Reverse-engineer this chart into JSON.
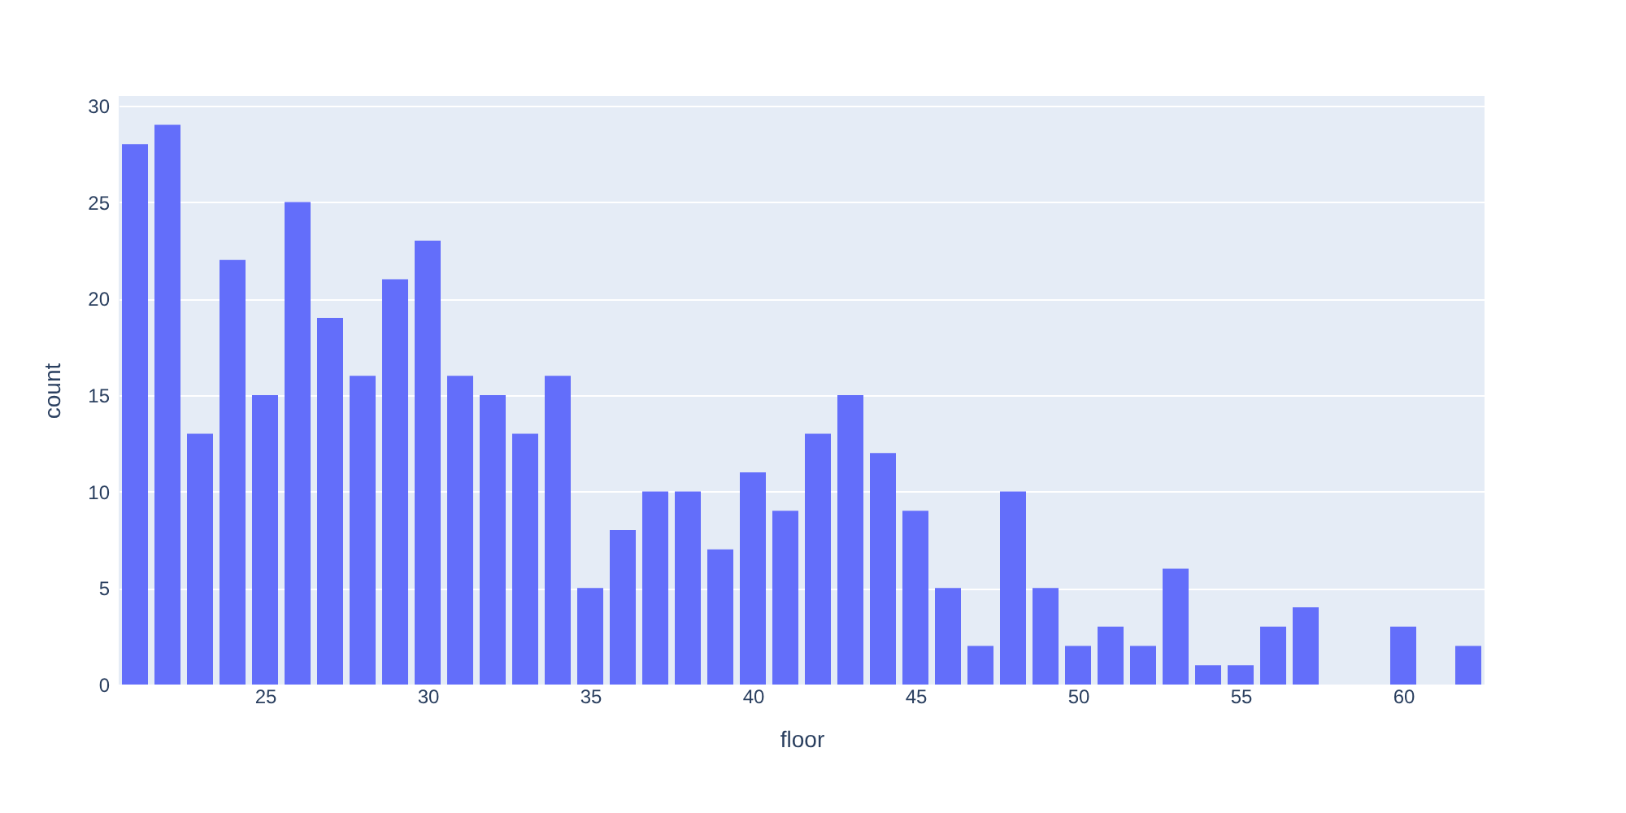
{
  "chart_data": {
    "type": "bar",
    "xlabel": "floor",
    "ylabel": "count",
    "x": [
      21,
      22,
      23,
      24,
      25,
      26,
      27,
      28,
      29,
      30,
      31,
      32,
      33,
      34,
      35,
      36,
      37,
      38,
      39,
      40,
      41,
      42,
      43,
      44,
      45,
      46,
      47,
      48,
      49,
      50,
      51,
      52,
      53,
      54,
      55,
      56,
      57,
      60,
      62
    ],
    "series": [
      {
        "color": "#636efa",
        "values": [
          28,
          29,
          13,
          22,
          15,
          25,
          19,
          16,
          21,
          23,
          16,
          15,
          13,
          16,
          5,
          8,
          10,
          10,
          7,
          11,
          9,
          13,
          15,
          12,
          9,
          5,
          2,
          10,
          5,
          2,
          3,
          2,
          6,
          1,
          1,
          3,
          4,
          3,
          2
        ]
      }
    ],
    "xlim": [
      20.5,
      62.5
    ],
    "xticks": [
      25,
      30,
      35,
      40,
      45,
      50,
      55,
      60
    ],
    "ylim": [
      0,
      30.5
    ],
    "yticks": [
      0,
      5,
      10,
      15,
      20,
      25,
      30
    ],
    "grid": "y",
    "legend": false
  }
}
